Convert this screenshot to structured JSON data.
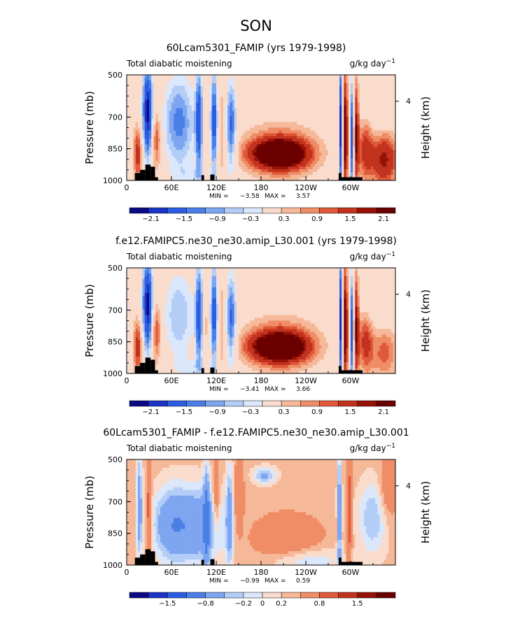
{
  "figure": {
    "title": "SON"
  },
  "colors": {
    "palette_13": [
      "#0a0a85",
      "#1c34c6",
      "#2d5de0",
      "#4a7fe6",
      "#7ea6f0",
      "#b3cdf7",
      "#dbe7fa",
      "#fadccc",
      "#f5b898",
      "#ef8d66",
      "#e0593b",
      "#c2331e",
      "#961206",
      "#6a0000"
    ],
    "land": "#000000"
  },
  "chart_data": [
    {
      "type": "heatmap",
      "title": "60Lcam5301_FAMIP (yrs 1979-1998)",
      "left_label": "Total diabatic moistening",
      "right_label": "g/kg day",
      "right_label_sup": "−1",
      "ylabel": "Pressure (mb)",
      "ylabel_right": "Height (km)",
      "x_ticks": [
        "0",
        "60E",
        "120E",
        "180",
        "120W",
        "60W"
      ],
      "x_tick_values": [
        0,
        60,
        120,
        180,
        240,
        300
      ],
      "xlim": [
        0,
        360
      ],
      "y_ticks": [
        "500",
        "700",
        "850",
        "1000"
      ],
      "y_tick_values": [
        500,
        700,
        850,
        1000
      ],
      "ylim": [
        500,
        1000
      ],
      "right_ticks": [
        "4"
      ],
      "right_tick_values": [
        620
      ],
      "min_label": "MIN =",
      "min_value": "−3.58",
      "max_label": "MAX =",
      "max_value": "3.57",
      "colorbar_labels": [
        "−2.1",
        "−1.5",
        "−0.9",
        "−0.3",
        "0.3",
        "0.9",
        "1.5",
        "2.1"
      ],
      "contour_levels": [
        -2.4,
        -2.1,
        -1.8,
        -1.5,
        -1.2,
        -0.9,
        -0.6,
        -0.3,
        0.3,
        0.6,
        0.9,
        1.2,
        1.5,
        1.8,
        2.1,
        2.4
      ]
    },
    {
      "type": "heatmap",
      "title": "f.e12.FAMIPC5.ne30_ne30.amip_L30.001 (yrs 1979-1998)",
      "left_label": "Total diabatic moistening",
      "right_label": "g/kg day",
      "right_label_sup": "−1",
      "ylabel": "Pressure (mb)",
      "ylabel_right": "Height (km)",
      "x_ticks": [
        "0",
        "60E",
        "120E",
        "180",
        "120W",
        "60W"
      ],
      "x_tick_values": [
        0,
        60,
        120,
        180,
        240,
        300
      ],
      "xlim": [
        0,
        360
      ],
      "y_ticks": [
        "500",
        "700",
        "850",
        "1000"
      ],
      "y_tick_values": [
        500,
        700,
        850,
        1000
      ],
      "ylim": [
        500,
        1000
      ],
      "right_ticks": [
        "4"
      ],
      "right_tick_values": [
        620
      ],
      "min_label": "MIN =",
      "min_value": "−3.41",
      "max_label": "MAX =",
      "max_value": "3.66",
      "colorbar_labels": [
        "−2.1",
        "−1.5",
        "−0.9",
        "−0.3",
        "0.3",
        "0.9",
        "1.5",
        "2.1"
      ],
      "contour_levels": [
        -2.4,
        -2.1,
        -1.8,
        -1.5,
        -1.2,
        -0.9,
        -0.6,
        -0.3,
        0.3,
        0.6,
        0.9,
        1.2,
        1.5,
        1.8,
        2.1,
        2.4
      ]
    },
    {
      "type": "heatmap",
      "title": "60Lcam5301_FAMIP - f.e12.FAMIPC5.ne30_ne30.amip_L30.001",
      "left_label": "Total diabatic moistening",
      "right_label": "g/kg day",
      "right_label_sup": "−1",
      "ylabel": "Pressure (mb)",
      "ylabel_right": "Height (km)",
      "x_ticks": [
        "0",
        "60E",
        "120E",
        "180",
        "120W",
        "60W"
      ],
      "x_tick_values": [
        0,
        60,
        120,
        180,
        240,
        300
      ],
      "xlim": [
        0,
        360
      ],
      "y_ticks": [
        "500",
        "700",
        "850",
        "1000"
      ],
      "y_tick_values": [
        500,
        700,
        850,
        1000
      ],
      "ylim": [
        500,
        1000
      ],
      "right_ticks": [
        "4"
      ],
      "right_tick_values": [
        620
      ],
      "min_label": "MIN =",
      "min_value": "−0.99",
      "max_label": "MAX =",
      "max_value": "0.59",
      "colorbar_labels": [
        "−1.5",
        "−0.8",
        "−0.2",
        "0",
        "0.2",
        "0.8",
        "1.5"
      ],
      "contour_levels": [
        -2,
        -1.5,
        -1.2,
        -0.8,
        -0.5,
        -0.2,
        -0.1,
        0,
        0.1,
        0.2,
        0.5,
        0.8,
        1.2,
        1.5,
        2
      ]
    }
  ]
}
